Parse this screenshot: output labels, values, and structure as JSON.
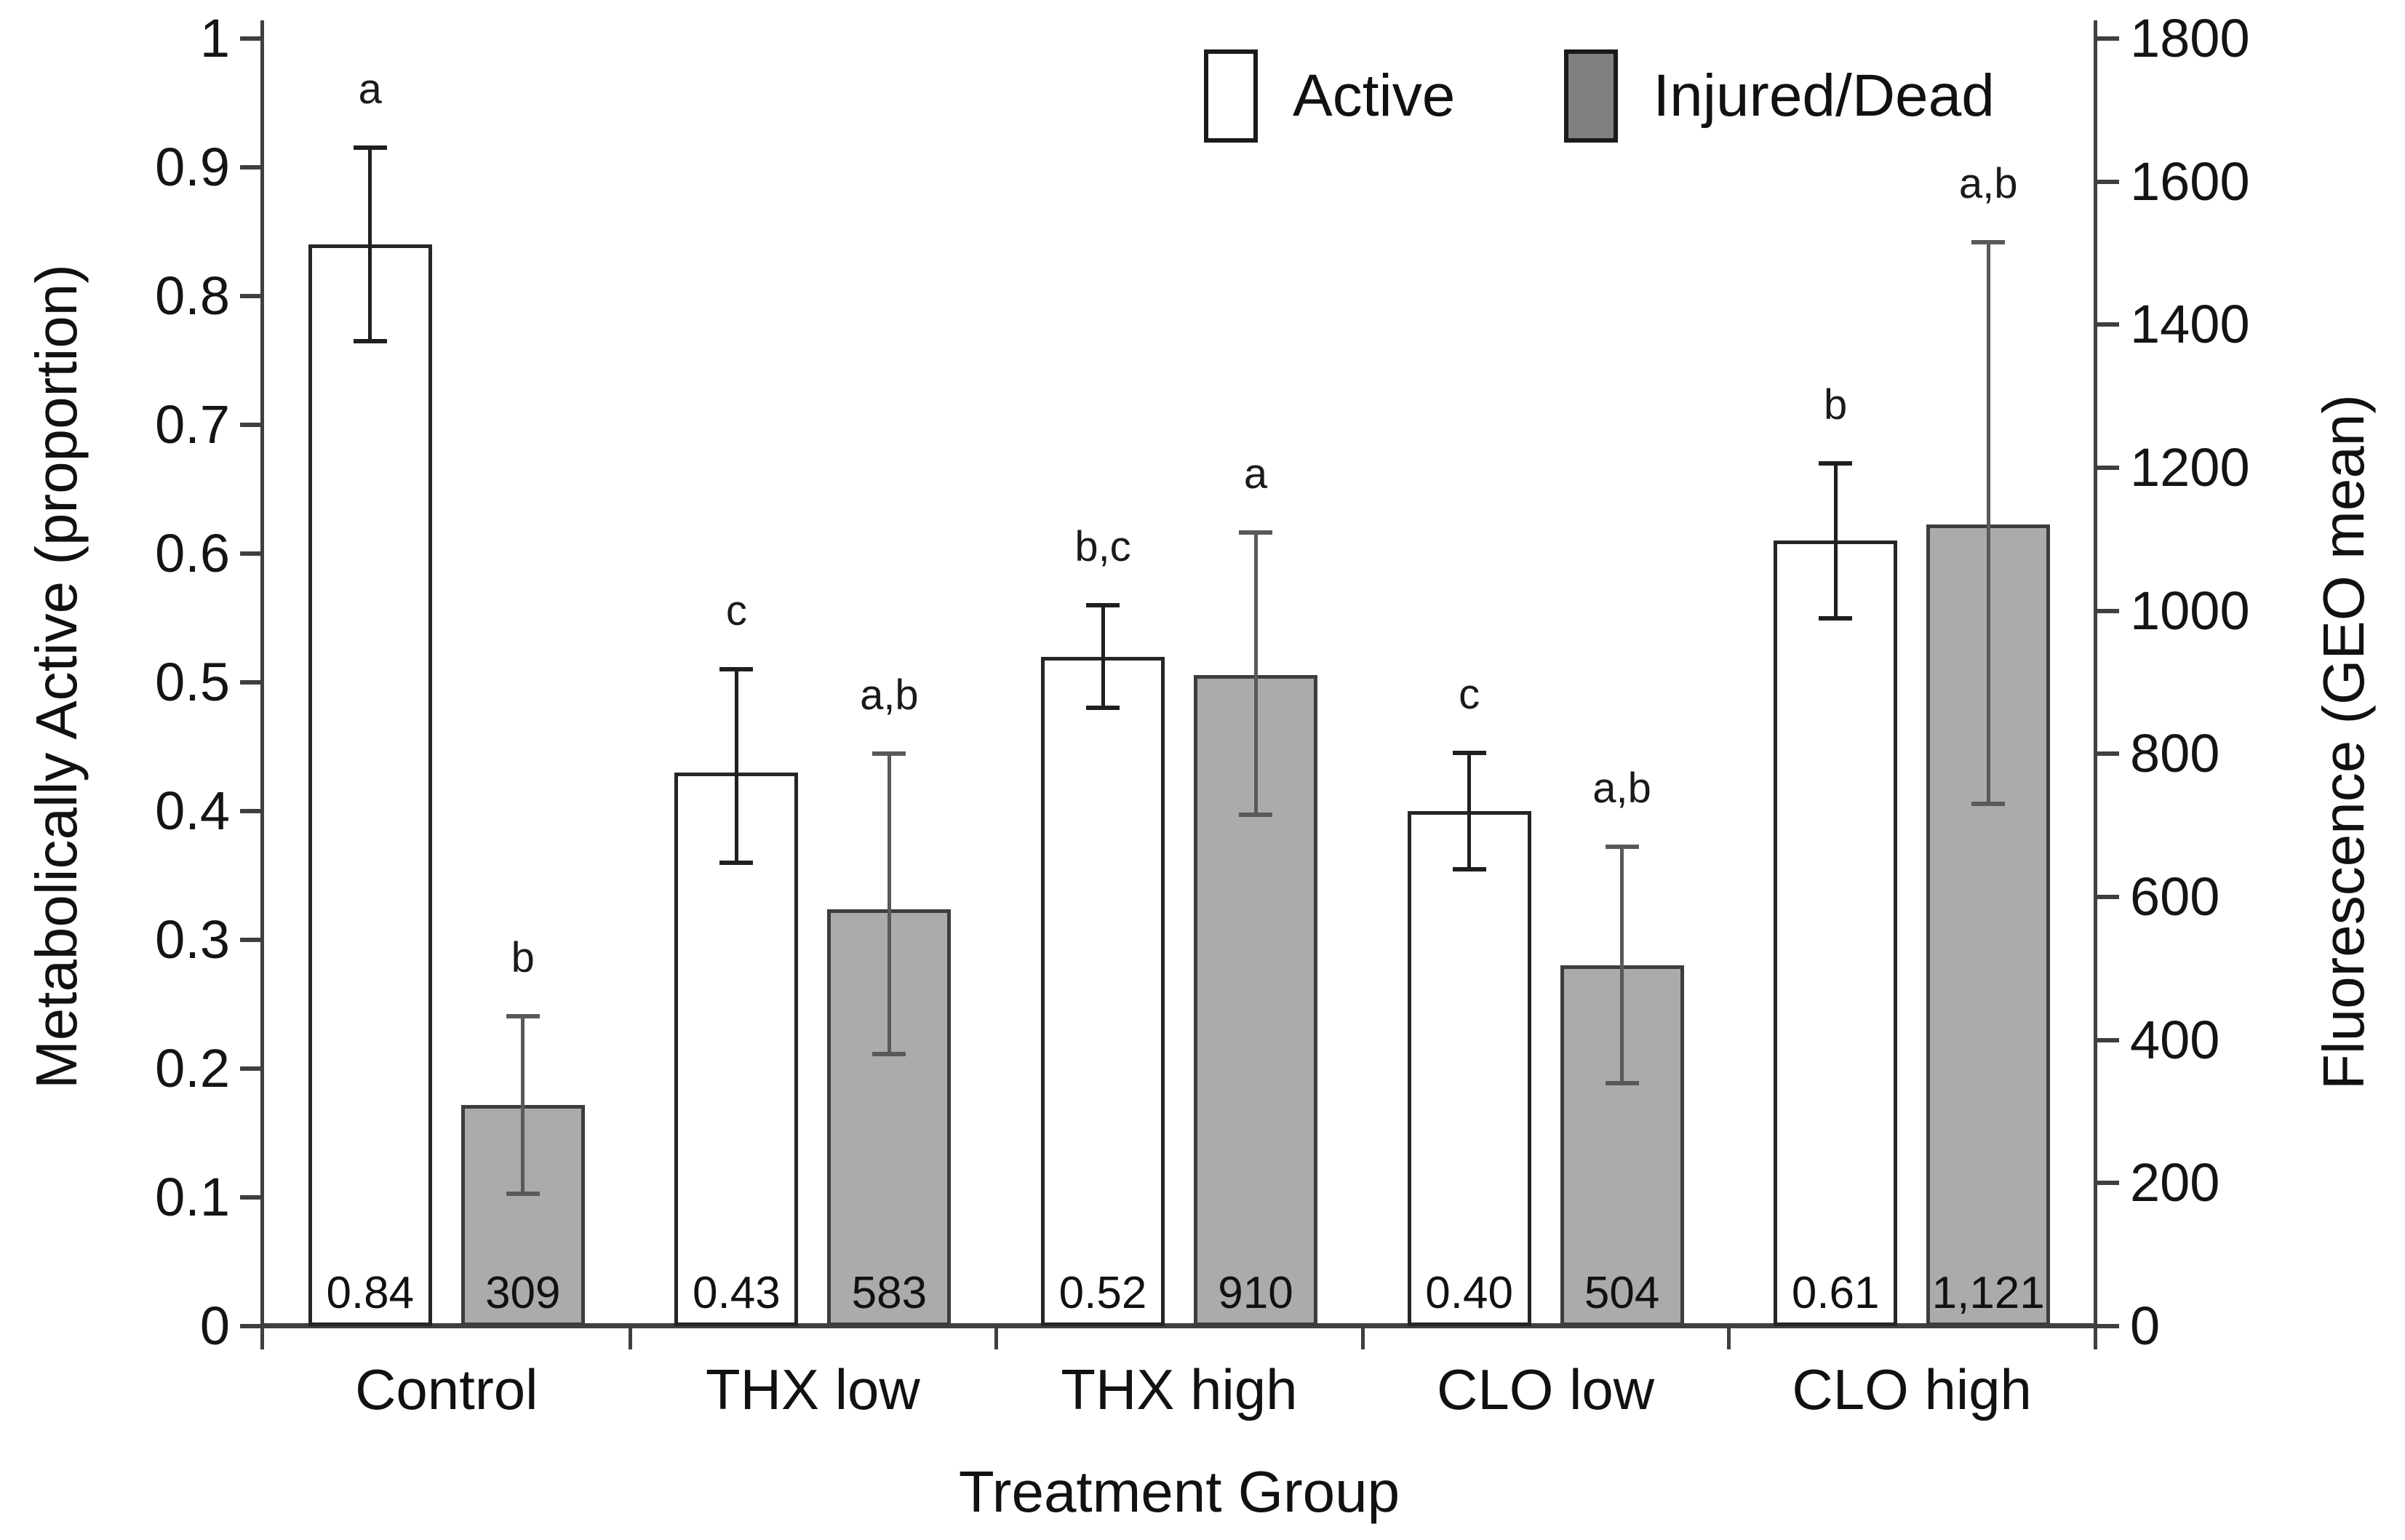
{
  "chart_data": {
    "type": "bar",
    "title": "",
    "xlabel": "Treatment Group",
    "ylabel_left": "Metabolically Active (proportion)",
    "ylabel_right": "Fluorescence (GEO mean)",
    "grid": false,
    "legend_position": "top-center",
    "categories": [
      "Control",
      "THX low",
      "THX high",
      "CLO low",
      "CLO high"
    ],
    "y_left": {
      "min": 0,
      "max": 1,
      "ticks": [
        {
          "v": 0,
          "t": "0"
        },
        {
          "v": 0.1,
          "t": "0.1"
        },
        {
          "v": 0.2,
          "t": "0.2"
        },
        {
          "v": 0.3,
          "t": "0.3"
        },
        {
          "v": 0.4,
          "t": "0.4"
        },
        {
          "v": 0.5,
          "t": "0.5"
        },
        {
          "v": 0.6,
          "t": "0.6"
        },
        {
          "v": 0.7,
          "t": "0.7"
        },
        {
          "v": 0.8,
          "t": "0.8"
        },
        {
          "v": 0.9,
          "t": "0.9"
        },
        {
          "v": 1,
          "t": "1"
        }
      ]
    },
    "y_right": {
      "min": 0,
      "max": 1800,
      "ticks": [
        {
          "v": 0,
          "t": "0"
        },
        {
          "v": 200,
          "t": "200"
        },
        {
          "v": 400,
          "t": "400"
        },
        {
          "v": 600,
          "t": "600"
        },
        {
          "v": 800,
          "t": "800"
        },
        {
          "v": 1000,
          "t": "1000"
        },
        {
          "v": 1200,
          "t": "1200"
        },
        {
          "v": 1400,
          "t": "1400"
        },
        {
          "v": 1600,
          "t": "1600"
        },
        {
          "v": 1800,
          "t": "1800"
        }
      ]
    },
    "legend": [
      {
        "name": "Active",
        "fill": "#ffffff"
      },
      {
        "name": "Injured/Dead",
        "fill": "#808080"
      }
    ],
    "series": [
      {
        "name": "Active",
        "axis": "left",
        "fill": "#ffffff",
        "values": [
          0.84,
          0.43,
          0.52,
          0.4,
          0.61
        ],
        "labels": [
          "0.84",
          "0.43",
          "0.52",
          "0.40",
          "0.61"
        ],
        "letters": [
          "a",
          "c",
          "b,c",
          "c",
          "b"
        ],
        "err_low": [
          0.765,
          0.36,
          0.48,
          0.355,
          0.55
        ],
        "err_high": [
          0.915,
          0.51,
          0.56,
          0.445,
          0.67
        ]
      },
      {
        "name": "Injured/Dead",
        "axis": "right",
        "fill": "#ababab",
        "values": [
          309,
          583,
          910,
          504,
          1121
        ],
        "labels": [
          "309",
          "583",
          "910",
          "504",
          "1,121"
        ],
        "letters": [
          "b",
          "a,b",
          "a",
          "a,b",
          "a,b"
        ],
        "err_low": [
          185,
          380,
          715,
          340,
          730
        ],
        "err_high": [
          433,
          800,
          1110,
          670,
          1515
        ]
      }
    ]
  },
  "colors": {
    "axis": "#3f3f3f",
    "text": "#111111",
    "bar_active_fill": "#ffffff",
    "bar_injured_fill": "#ababab",
    "bar_active_border": "#262626",
    "bar_injured_border": "#3d3d3d",
    "err_active": "#1f1f1f",
    "err_injured": "#595959",
    "legend_injured_fill": "#808080"
  }
}
